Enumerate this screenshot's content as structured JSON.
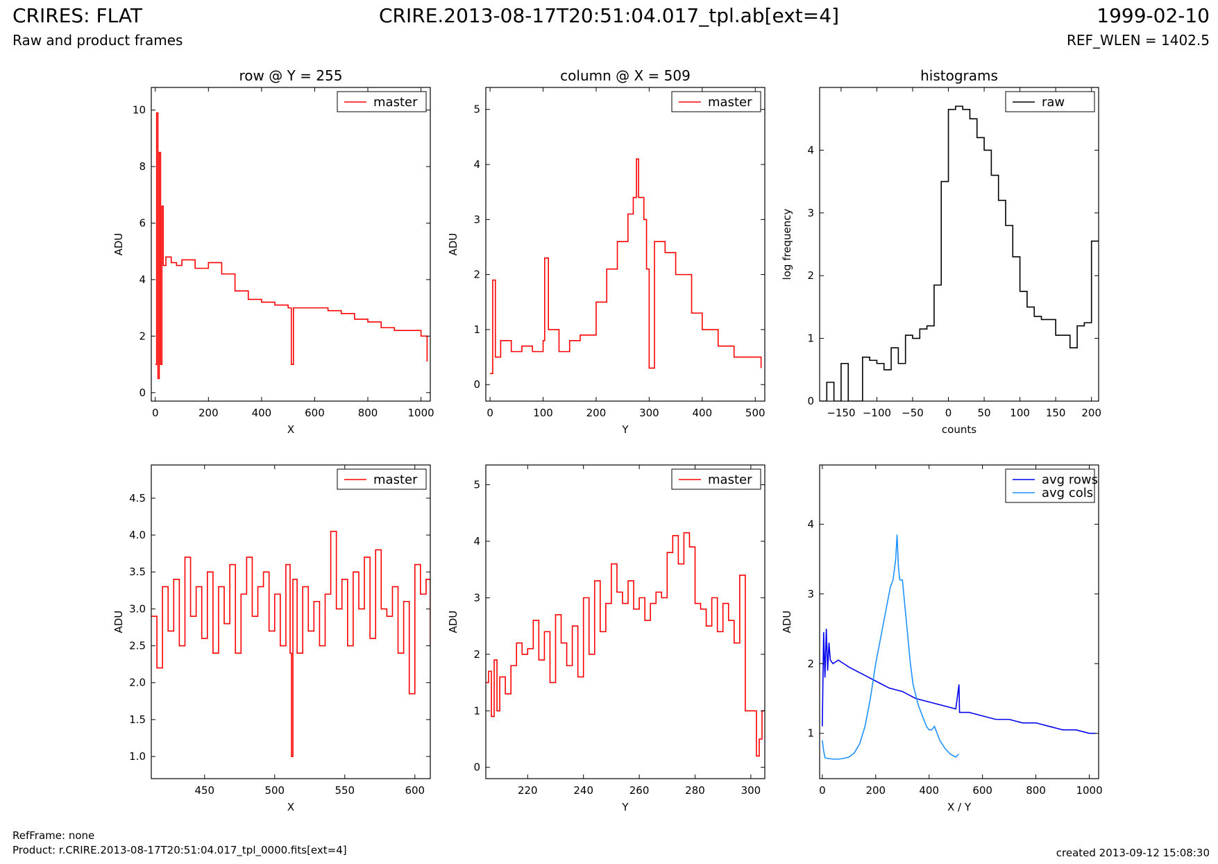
{
  "header": {
    "title": "CRIRES: FLAT",
    "subtitle": "Raw and product frames",
    "file": "CRIRE.2013-08-17T20:51:04.017_tpl.ab[ext=4]",
    "date": "1999-02-10",
    "ref_wlen": "REF_WLEN = 1402.5"
  },
  "footer": {
    "ref_frame": "RefFrame: none",
    "product": "Product: r.CRIRE.2013-08-17T20:51:04.017_tpl_0000.fits[ext=4]",
    "created": "created 2013-09-12 15:08:30"
  },
  "colors": {
    "red": "#ff0000",
    "dark_blue": "#0000ee",
    "light_blue": "#1e90ff",
    "black": "#000000"
  },
  "chart_data": [
    {
      "type": "line",
      "step": true,
      "title": "row @ Y = 255",
      "xlabel": "X",
      "ylabel": "ADU",
      "xlim": [
        -15,
        1035
      ],
      "ylim": [
        -0.3,
        10.8
      ],
      "xticks": [
        0,
        200,
        400,
        600,
        800,
        1000
      ],
      "yticks": [
        0,
        2,
        4,
        6,
        8,
        10
      ],
      "legend": "top-right",
      "series": [
        {
          "name": "master",
          "color": "#ff0000",
          "x": [
            0,
            5,
            10,
            15,
            20,
            25,
            30,
            40,
            60,
            80,
            100,
            150,
            200,
            250,
            300,
            350,
            400,
            450,
            500,
            512,
            520,
            550,
            600,
            650,
            700,
            750,
            800,
            850,
            900,
            950,
            1000,
            1023
          ],
          "y": [
            1.0,
            9.9,
            0.5,
            8.5,
            1.0,
            6.6,
            4.5,
            4.8,
            4.6,
            4.5,
            4.7,
            4.4,
            4.6,
            4.2,
            3.6,
            3.3,
            3.2,
            3.1,
            3.0,
            1.0,
            3.0,
            3.0,
            3.0,
            2.9,
            2.8,
            2.6,
            2.5,
            2.3,
            2.2,
            2.2,
            2.0,
            1.1
          ]
        }
      ]
    },
    {
      "type": "line",
      "step": true,
      "title": "column @ X = 509",
      "xlabel": "Y",
      "ylabel": "ADU",
      "xlim": [
        -8,
        518
      ],
      "ylim": [
        -0.3,
        5.4
      ],
      "xticks": [
        0,
        100,
        200,
        300,
        400,
        500
      ],
      "yticks": [
        0,
        1,
        2,
        3,
        4,
        5
      ],
      "legend": "top-right",
      "series": [
        {
          "name": "master",
          "color": "#ff0000",
          "x": [
            0,
            5,
            10,
            20,
            40,
            60,
            80,
            100,
            103,
            110,
            120,
            130,
            150,
            170,
            200,
            220,
            240,
            260,
            270,
            276,
            280,
            290,
            295,
            300,
            310,
            330,
            350,
            380,
            400,
            430,
            460,
            490,
            511
          ],
          "y": [
            0.2,
            1.9,
            0.5,
            0.8,
            0.6,
            0.7,
            0.6,
            0.8,
            2.3,
            1.0,
            1.0,
            0.6,
            0.8,
            0.9,
            1.5,
            2.1,
            2.6,
            3.1,
            3.4,
            4.1,
            3.4,
            3.0,
            2.1,
            0.3,
            2.6,
            2.4,
            2.0,
            1.3,
            1.0,
            0.7,
            0.5,
            0.5,
            0.3
          ]
        }
      ]
    },
    {
      "type": "line",
      "step": true,
      "title": "histograms",
      "xlabel": "counts",
      "ylabel": "log frequency",
      "xlim": [
        -180,
        210
      ],
      "ylim": [
        0,
        5.0
      ],
      "xticks": [
        -150,
        -100,
        -50,
        0,
        50,
        100,
        150,
        200
      ],
      "yticks": [
        0,
        1,
        2,
        3,
        4
      ],
      "legend": "top-right",
      "series": [
        {
          "name": "raw",
          "color": "#000000",
          "x": [
            -180,
            -170,
            -160,
            -150,
            -140,
            -130,
            -120,
            -110,
            -100,
            -90,
            -80,
            -70,
            -60,
            -50,
            -40,
            -30,
            -20,
            -10,
            0,
            10,
            20,
            30,
            40,
            50,
            60,
            70,
            80,
            90,
            100,
            110,
            120,
            130,
            150,
            170,
            180,
            190,
            200,
            210
          ],
          "y": [
            0,
            0.3,
            0,
            0.6,
            0,
            0,
            0.7,
            0.65,
            0.6,
            0.5,
            0.85,
            0.6,
            1.05,
            1.0,
            1.15,
            1.2,
            1.85,
            3.5,
            4.65,
            4.7,
            4.65,
            4.5,
            4.2,
            4.0,
            3.6,
            3.2,
            2.8,
            2.3,
            1.75,
            1.5,
            1.35,
            1.3,
            1.05,
            0.85,
            1.2,
            1.25,
            2.55,
            2.55
          ]
        }
      ]
    },
    {
      "type": "line",
      "step": true,
      "title": "",
      "xlabel": "X",
      "ylabel": "ADU",
      "xlim": [
        412,
        611
      ],
      "ylim": [
        0.7,
        4.95
      ],
      "xticks": [
        450,
        500,
        550,
        600
      ],
      "yticks": [
        1.0,
        1.5,
        2.0,
        2.5,
        3.0,
        3.5,
        4.0,
        4.5
      ],
      "legend": "top-right",
      "series": [
        {
          "name": "master",
          "color": "#ff0000",
          "x": [
            412,
            416,
            420,
            424,
            428,
            432,
            436,
            440,
            444,
            448,
            452,
            456,
            460,
            464,
            468,
            472,
            476,
            480,
            484,
            488,
            492,
            496,
            500,
            504,
            508,
            511,
            512,
            513,
            516,
            520,
            524,
            528,
            532,
            536,
            540,
            544,
            548,
            552,
            556,
            560,
            564,
            568,
            572,
            576,
            580,
            584,
            588,
            592,
            596,
            600,
            604,
            608,
            611
          ],
          "y": [
            2.9,
            2.2,
            3.3,
            2.7,
            3.4,
            2.5,
            3.7,
            2.9,
            3.3,
            2.6,
            3.5,
            2.4,
            3.3,
            2.8,
            3.6,
            2.4,
            3.2,
            3.7,
            2.9,
            3.3,
            3.5,
            2.7,
            3.2,
            2.5,
            3.6,
            2.4,
            1.0,
            3.4,
            2.4,
            3.3,
            2.7,
            3.1,
            2.5,
            3.2,
            4.05,
            3.0,
            3.4,
            2.5,
            3.5,
            3.0,
            3.7,
            2.6,
            3.8,
            3.0,
            2.9,
            3.3,
            2.4,
            3.1,
            1.85,
            3.6,
            3.2,
            3.4,
            2.5
          ]
        }
      ]
    },
    {
      "type": "line",
      "step": true,
      "title": "",
      "xlabel": "Y",
      "ylabel": "ADU",
      "xlim": [
        205,
        305
      ],
      "ylim": [
        -0.2,
        5.35
      ],
      "xticks": [
        220,
        240,
        260,
        280,
        300
      ],
      "yticks": [
        0,
        1,
        2,
        3,
        4,
        5
      ],
      "legend": "top-right",
      "series": [
        {
          "name": "master",
          "color": "#ff0000",
          "x": [
            205,
            206,
            207,
            208,
            209,
            210,
            212,
            214,
            216,
            218,
            220,
            222,
            224,
            226,
            228,
            230,
            232,
            234,
            236,
            238,
            240,
            242,
            244,
            246,
            248,
            250,
            252,
            254,
            256,
            258,
            260,
            262,
            264,
            266,
            268,
            270,
            272,
            274,
            276,
            278,
            280,
            282,
            284,
            286,
            288,
            290,
            292,
            294,
            296,
            298,
            300,
            302,
            303,
            304,
            305
          ],
          "y": [
            1.5,
            1.7,
            0.9,
            1.9,
            1.0,
            1.6,
            1.3,
            1.8,
            2.2,
            2.0,
            2.1,
            2.6,
            1.9,
            2.4,
            1.5,
            2.7,
            2.2,
            1.8,
            2.5,
            1.6,
            3.0,
            2.0,
            3.3,
            2.4,
            2.9,
            3.6,
            3.1,
            2.9,
            3.3,
            2.8,
            3.0,
            2.6,
            2.9,
            3.1,
            3.0,
            3.8,
            4.1,
            3.6,
            4.15,
            3.9,
            2.9,
            2.8,
            2.5,
            3.0,
            2.4,
            2.9,
            2.6,
            2.2,
            3.4,
            1.0,
            1.0,
            0.2,
            0.5,
            1.0,
            1.0
          ]
        }
      ]
    },
    {
      "type": "line",
      "step": false,
      "title": "",
      "xlabel": "X / Y",
      "ylabel": "ADU",
      "xlim": [
        -10,
        1035
      ],
      "ylim": [
        0.35,
        4.85
      ],
      "xticks": [
        0,
        200,
        400,
        600,
        800,
        1000
      ],
      "yticks": [
        1,
        2,
        3,
        4
      ],
      "legend": "top-right",
      "series": [
        {
          "name": "avg rows",
          "color": "#0000ee",
          "x": [
            0,
            5,
            10,
            15,
            20,
            25,
            30,
            40,
            60,
            80,
            100,
            150,
            200,
            250,
            300,
            350,
            400,
            450,
            500,
            512,
            514,
            550,
            600,
            650,
            700,
            750,
            800,
            850,
            900,
            950,
            1000,
            1023
          ],
          "y": [
            1.1,
            2.45,
            1.8,
            2.5,
            1.9,
            2.3,
            2.05,
            2.0,
            2.05,
            2.0,
            1.95,
            1.85,
            1.75,
            1.65,
            1.6,
            1.5,
            1.45,
            1.4,
            1.35,
            1.7,
            1.3,
            1.3,
            1.25,
            1.2,
            1.2,
            1.15,
            1.15,
            1.1,
            1.05,
            1.05,
            1.0,
            1.0
          ]
        },
        {
          "name": "avg cols",
          "color": "#1e90ff",
          "x": [
            0,
            5,
            10,
            20,
            40,
            60,
            80,
            100,
            120,
            140,
            160,
            180,
            200,
            220,
            240,
            255,
            265,
            275,
            280,
            285,
            290,
            300,
            310,
            320,
            330,
            340,
            350,
            360,
            370,
            380,
            390,
            400,
            410,
            420,
            430,
            440,
            460,
            480,
            500,
            511
          ],
          "y": [
            0.9,
            0.75,
            0.65,
            0.64,
            0.63,
            0.63,
            0.64,
            0.66,
            0.72,
            0.85,
            1.1,
            1.5,
            2.0,
            2.4,
            2.8,
            3.1,
            3.2,
            3.5,
            3.85,
            3.4,
            3.2,
            3.2,
            2.8,
            2.4,
            2.0,
            1.7,
            1.55,
            1.4,
            1.3,
            1.2,
            1.1,
            1.05,
            1.05,
            1.1,
            1.0,
            0.9,
            0.78,
            0.7,
            0.66,
            0.7
          ]
        }
      ]
    }
  ]
}
